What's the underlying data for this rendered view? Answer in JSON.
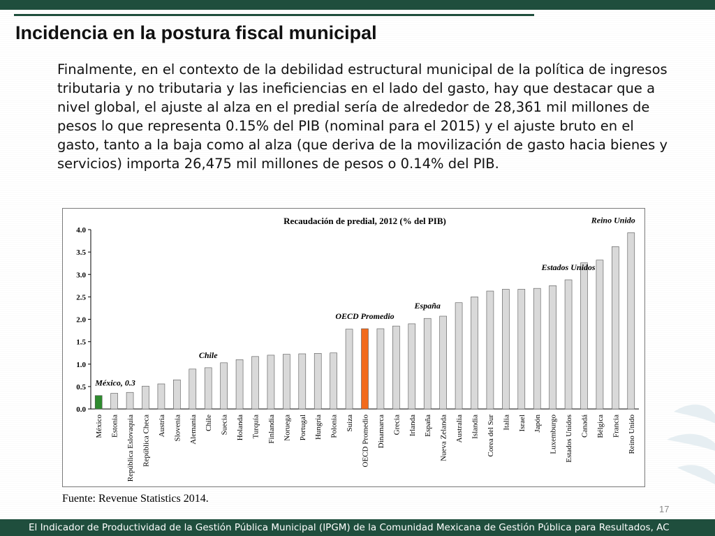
{
  "slide": {
    "title": "Incidencia en la postura fiscal municipal",
    "body": "Finalmente, en el contexto de la debilidad estructural municipal de la política de ingresos tributaria y no tributaria y las ineficiencias en el lado del gasto, hay que destacar que a nivel global, el ajuste al alza en el predial sería de alrededor de 28,361 mil millones de pesos lo que representa 0.15% del PIB (nominal para el 2015) y el ajuste bruto en el gasto, tanto a la baja como al alza (que deriva de la movilización de gasto hacia bienes y servicios) importa 26,475 mil millones de pesos o 0.14% del PIB.",
    "source": "Fuente: Revenue Statistics 2014.",
    "page_number": "17",
    "footer": "El Indicador de Productividad de la Gestión Pública Municipal (IPGM) de la Comunidad Mexicana de Gestión Pública para Resultados, AC"
  },
  "colors": {
    "theme_green": "#1f4e3d",
    "bar_default": "#d9d9d9",
    "bar_mexico": "#2e8b2e",
    "bar_oecd": "#f26b1d"
  },
  "chart_data": {
    "type": "bar",
    "title": "Recaudación de predial, 2012 (% del PIB)",
    "xlabel": "",
    "ylabel": "",
    "ylim": [
      0,
      4.0
    ],
    "yticks": [
      "0.0",
      "0.5",
      "1.0",
      "1.5",
      "2.0",
      "2.5",
      "3.0",
      "3.5",
      "4.0"
    ],
    "grid": false,
    "legend": "none",
    "categories": [
      "México",
      "Estonia",
      "República Eslovaquia",
      "República Checa",
      "Austria",
      "Slovenia",
      "Alemania",
      "Chile",
      "Suecia",
      "Holanda",
      "Turquía",
      "Finlandia",
      "Noruega",
      "Portugal",
      "Hungría",
      "Polonia",
      "Suiza",
      "OECD Promedio",
      "Dinamarca",
      "Grecia",
      "Irlanda",
      "España",
      "Nueva Zelanda",
      "Australia",
      "Islandia",
      "Corea del Sur",
      "Italia",
      "Israel",
      "Japón",
      "Luxemburgo",
      "Estados Unidos",
      "Canadá",
      "Bélgica",
      "Francia",
      "Reino Unido"
    ],
    "values": [
      0.3,
      0.35,
      0.37,
      0.51,
      0.56,
      0.65,
      0.89,
      0.92,
      1.03,
      1.1,
      1.17,
      1.2,
      1.22,
      1.23,
      1.24,
      1.25,
      1.78,
      1.79,
      1.79,
      1.85,
      1.9,
      2.02,
      2.07,
      2.37,
      2.5,
      2.63,
      2.67,
      2.67,
      2.69,
      2.75,
      2.88,
      3.26,
      3.32,
      3.62,
      3.93
    ],
    "highlights": [
      {
        "category": "México",
        "color": "#2e8b2e"
      },
      {
        "category": "OECD Promedio",
        "color": "#f26b1d"
      }
    ],
    "annotations": [
      {
        "category": "México",
        "text": "México, 0.3"
      },
      {
        "category": "Chile",
        "text": "Chile"
      },
      {
        "category": "OECD Promedio",
        "text": "OECD Promedio"
      },
      {
        "category": "España",
        "text": "España"
      },
      {
        "category": "Estados Unidos",
        "text": "Estados Unidos"
      },
      {
        "category": "Reino Unido",
        "text": "Reino Unido"
      }
    ]
  }
}
